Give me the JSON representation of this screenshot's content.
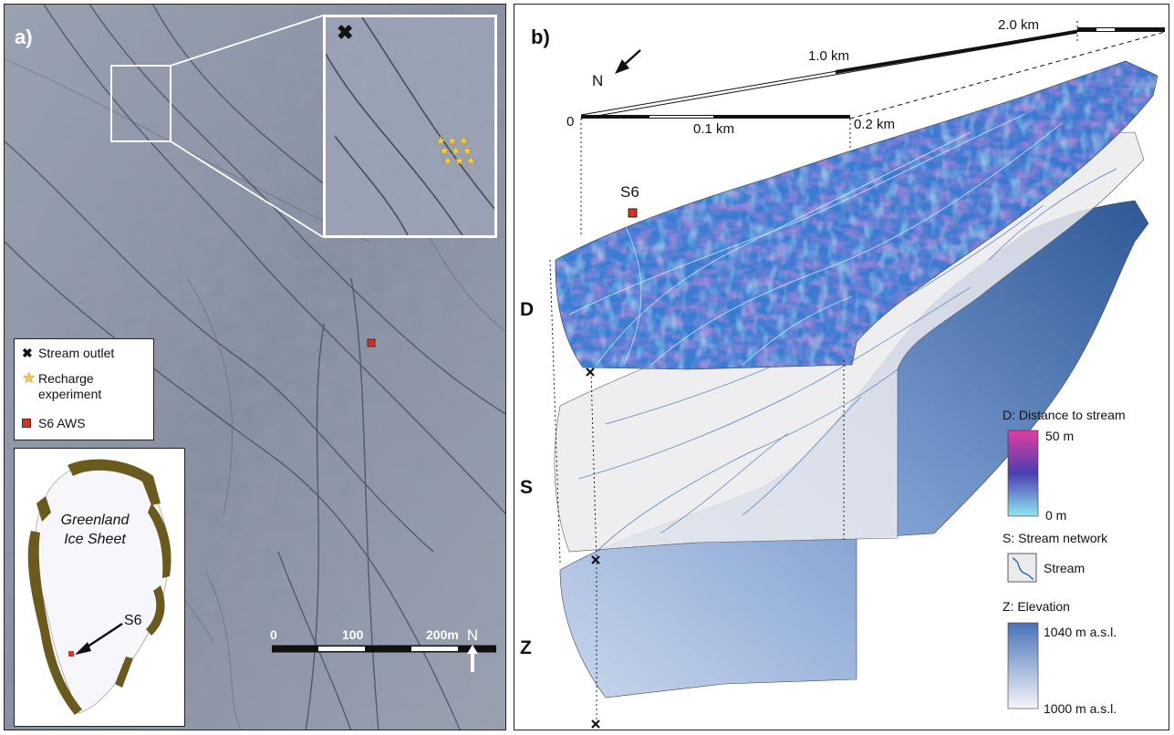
{
  "panel_a": {
    "label": "a)",
    "legend": {
      "stream_outlet": "Stream outlet",
      "recharge_experiment": "Recharge experiment",
      "s6_aws": "S6 AWS"
    },
    "inset_map": {
      "ice_sheet_label": "Greenland Ice Sheet",
      "site_label": "S6",
      "site_color": "#e0312b",
      "land_color": "#6b5a1e"
    },
    "scale_bar": {
      "tick_0": "0",
      "tick_100": "100",
      "tick_200": "200m"
    },
    "north_label": "N",
    "colors": {
      "outlet_marker": "#111111",
      "star": "#f2c94c",
      "aws_marker": "#d5321f"
    }
  },
  "panel_b": {
    "label": "b)",
    "north_label": "N",
    "scale": {
      "zero": "0",
      "small_mid": "0.1 km",
      "small_end": "0.2 km",
      "large_mid": "1.0 km",
      "large_end": "2.0 km"
    },
    "site_label": "S6",
    "layers": {
      "distance": "D",
      "stream": "S",
      "elevation": "Z"
    },
    "legend": {
      "distance_title": "D: Distance to stream",
      "distance_max": "50 m",
      "distance_min": "0 m",
      "stream_title": "S: Stream network",
      "stream_item": "Stream",
      "elevation_title": "Z: Elevation",
      "elevation_max": "1040 m a.s.l.",
      "elevation_min": "1000 m a.s.l."
    },
    "colors": {
      "distance_high": "#d43fa4",
      "distance_mid": "#5b3fb0",
      "distance_low": "#8fe0ee",
      "stream": "#2a5fa8",
      "elevation_high": "#4a72b8",
      "elevation_low": "#f3f5f8"
    }
  }
}
